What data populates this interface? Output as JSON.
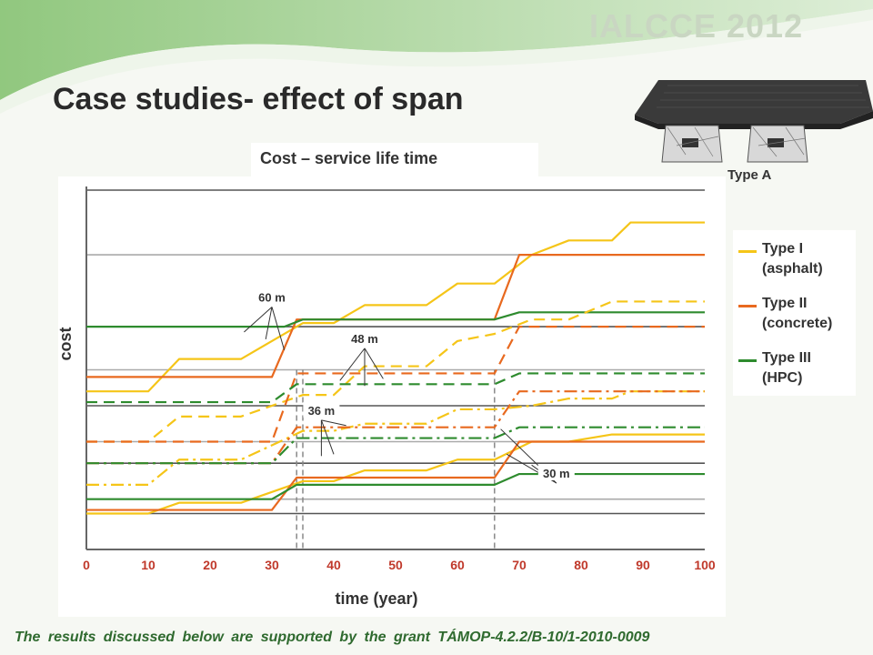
{
  "conference": "IALCCE 2012",
  "slide_title": "Case studies- effect of span",
  "image_caption": "Type A",
  "footer": "The results discussed below are supported by the grant TÁMOP-4.2.2/B-10/1-2010-0009",
  "colors": {
    "type1": "#f5c518",
    "type2": "#e8691f",
    "type3": "#2e8b2e",
    "footer": "#2f6a2f"
  },
  "legend": [
    {
      "label": "Type I (asphalt)",
      "color": "#f5c518"
    },
    {
      "label": "Type II (concrete)",
      "color": "#e8691f"
    },
    {
      "label": "Type III (HPC)",
      "color": "#2e8b2e"
    }
  ],
  "chart_data": {
    "type": "line",
    "title": "Cost – service life time",
    "xlabel": "time (year)",
    "ylabel": "cost",
    "xlim": [
      0,
      100
    ],
    "ylim": [
      0,
      1
    ],
    "x_ticks": [
      0,
      10,
      20,
      30,
      40,
      50,
      60,
      70,
      80,
      90,
      100
    ],
    "gridlines_y": [
      0.1,
      0.14,
      0.24,
      0.3,
      0.4,
      0.5,
      0.62,
      0.82,
      1.0
    ],
    "vertical_markers": [
      34,
      35,
      66
    ],
    "span_labels": [
      {
        "text": "60 m",
        "x": 30,
        "y": 0.69,
        "targets": [
          [
            25.5,
            0.605
          ],
          [
            29,
            0.585
          ],
          [
            32,
            0.555
          ]
        ]
      },
      {
        "text": "48 m",
        "x": 45,
        "y": 0.575,
        "targets": [
          [
            41,
            0.47
          ],
          [
            45,
            0.455
          ],
          [
            48,
            0.475
          ]
        ]
      },
      {
        "text": "36 m",
        "x": 38,
        "y": 0.375,
        "targets": [
          [
            38,
            0.26
          ],
          [
            40,
            0.265
          ],
          [
            42,
            0.345
          ]
        ]
      },
      {
        "text": "30 m",
        "x": 76,
        "y": 0.2,
        "targets": [
          [
            67,
            0.335
          ],
          [
            68,
            0.265
          ],
          [
            72,
            0.235
          ]
        ]
      }
    ],
    "series": [
      {
        "group": "Type I",
        "span": "60 m",
        "style": "solid",
        "x": [
          0,
          10,
          15,
          25,
          35,
          40,
          45,
          55,
          60,
          66,
          72,
          78,
          85,
          88,
          100
        ],
        "y": [
          0.44,
          0.44,
          0.53,
          0.53,
          0.63,
          0.63,
          0.68,
          0.68,
          0.74,
          0.74,
          0.82,
          0.86,
          0.86,
          0.91,
          0.91
        ]
      },
      {
        "group": "Type II",
        "span": "60 m",
        "style": "solid",
        "x": [
          0,
          30,
          34,
          66,
          70,
          100
        ],
        "y": [
          0.48,
          0.48,
          0.64,
          0.64,
          0.82,
          0.82
        ]
      },
      {
        "group": "Type III",
        "span": "60 m",
        "style": "solid",
        "x": [
          0,
          32,
          35,
          66,
          70,
          100
        ],
        "y": [
          0.62,
          0.62,
          0.64,
          0.64,
          0.66,
          0.66
        ]
      },
      {
        "group": "Type I",
        "span": "48 m",
        "style": "dashed",
        "x": [
          0,
          10,
          15,
          25,
          35,
          40,
          45,
          55,
          60,
          66,
          72,
          78,
          85,
          88,
          100
        ],
        "y": [
          0.3,
          0.3,
          0.37,
          0.37,
          0.43,
          0.43,
          0.51,
          0.51,
          0.58,
          0.6,
          0.64,
          0.64,
          0.69,
          0.69,
          0.69
        ]
      },
      {
        "group": "Type II",
        "span": "48 m",
        "style": "dashed",
        "x": [
          0,
          30,
          34,
          66,
          70,
          100
        ],
        "y": [
          0.3,
          0.3,
          0.49,
          0.49,
          0.62,
          0.62
        ]
      },
      {
        "group": "Type III",
        "span": "48 m",
        "style": "dashed",
        "x": [
          0,
          30,
          34,
          66,
          70,
          100
        ],
        "y": [
          0.41,
          0.41,
          0.46,
          0.46,
          0.49,
          0.49
        ]
      },
      {
        "group": "Type I",
        "span": "36 m",
        "style": "dashdot",
        "x": [
          0,
          10,
          15,
          25,
          35,
          40,
          45,
          55,
          60,
          66,
          72,
          78,
          85,
          88,
          100
        ],
        "y": [
          0.18,
          0.18,
          0.25,
          0.25,
          0.33,
          0.33,
          0.35,
          0.35,
          0.39,
          0.39,
          0.4,
          0.42,
          0.42,
          0.44,
          0.44
        ]
      },
      {
        "group": "Type II",
        "span": "36 m",
        "style": "dashdot",
        "x": [
          0,
          30,
          34,
          66,
          70,
          100
        ],
        "y": [
          0.24,
          0.24,
          0.34,
          0.34,
          0.44,
          0.44
        ]
      },
      {
        "group": "Type III",
        "span": "36 m",
        "style": "dashdot",
        "x": [
          0,
          30,
          34,
          66,
          70,
          100
        ],
        "y": [
          0.24,
          0.24,
          0.31,
          0.31,
          0.34,
          0.34
        ]
      },
      {
        "group": "Type I",
        "span": "30 m",
        "style": "solid",
        "x": [
          0,
          10,
          15,
          25,
          35,
          40,
          45,
          55,
          60,
          66,
          72,
          78,
          85,
          88,
          100
        ],
        "y": [
          0.1,
          0.1,
          0.13,
          0.13,
          0.19,
          0.19,
          0.22,
          0.22,
          0.25,
          0.25,
          0.3,
          0.3,
          0.32,
          0.32,
          0.32
        ]
      },
      {
        "group": "Type II",
        "span": "30 m",
        "style": "solid",
        "x": [
          0,
          30,
          34,
          66,
          70,
          100
        ],
        "y": [
          0.11,
          0.11,
          0.2,
          0.2,
          0.3,
          0.3
        ]
      },
      {
        "group": "Type III",
        "span": "30 m",
        "style": "solid",
        "x": [
          0,
          30,
          34,
          66,
          70,
          100
        ],
        "y": [
          0.14,
          0.14,
          0.18,
          0.18,
          0.21,
          0.21
        ]
      }
    ]
  }
}
